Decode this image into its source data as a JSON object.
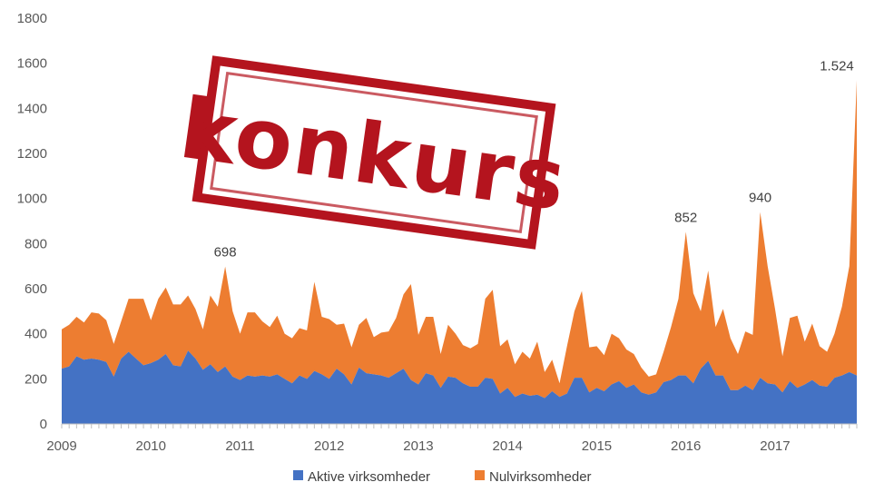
{
  "colors": {
    "active": "#4472c4",
    "zero": "#ed7d31",
    "stamp": "#b4141e",
    "axis": "#bfbfbf"
  },
  "stamp_text": "konkurs",
  "chart_data": {
    "type": "area",
    "stacked": true,
    "y_ticks": [
      "0",
      "200",
      "400",
      "600",
      "800",
      "1000",
      "1200",
      "1400",
      "1600",
      "1800"
    ],
    "ylim": [
      0,
      1800
    ],
    "x_tick_labels": [
      "2009",
      "2010",
      "2011",
      "2012",
      "2013",
      "2014",
      "2015",
      "2016",
      "2017"
    ],
    "x_start_year": 2009,
    "legend_position": "bottom",
    "grid": false,
    "series": [
      {
        "name": "Aktive virksomheder",
        "values": [
          245,
          255,
          300,
          285,
          290,
          285,
          275,
          210,
          290,
          320,
          290,
          260,
          270,
          285,
          310,
          260,
          255,
          325,
          290,
          240,
          265,
          230,
          255,
          210,
          195,
          215,
          210,
          215,
          210,
          220,
          200,
          180,
          215,
          200,
          235,
          220,
          200,
          245,
          220,
          175,
          250,
          225,
          220,
          215,
          205,
          225,
          245,
          195,
          175,
          225,
          215,
          160,
          210,
          205,
          180,
          165,
          165,
          205,
          200,
          135,
          160,
          120,
          135,
          125,
          130,
          115,
          145,
          120,
          135,
          205,
          205,
          140,
          160,
          145,
          175,
          190,
          160,
          175,
          140,
          130,
          140,
          185,
          195,
          215,
          215,
          180,
          245,
          280,
          215,
          215,
          150,
          150,
          170,
          150,
          205,
          180,
          175,
          140,
          190,
          160,
          175,
          195,
          170,
          165,
          205,
          215,
          230,
          215
        ]
      },
      {
        "name": "Nulvirksomheder",
        "values": [
          420,
          440,
          475,
          450,
          495,
          490,
          460,
          355,
          455,
          555,
          555,
          555,
          460,
          555,
          605,
          530,
          530,
          570,
          510,
          420,
          570,
          520,
          698,
          500,
          400,
          495,
          495,
          455,
          430,
          480,
          400,
          380,
          425,
          415,
          630,
          475,
          465,
          440,
          445,
          340,
          440,
          470,
          385,
          405,
          410,
          470,
          575,
          620,
          395,
          475,
          475,
          310,
          440,
          400,
          350,
          335,
          355,
          555,
          595,
          345,
          375,
          265,
          320,
          290,
          365,
          230,
          285,
          180,
          345,
          500,
          590,
          340,
          345,
          305,
          400,
          380,
          330,
          310,
          250,
          210,
          220,
          320,
          430,
          555,
          852,
          580,
          500,
          680,
          430,
          510,
          380,
          310,
          410,
          395,
          940,
          700,
          510,
          300,
          470,
          480,
          365,
          445,
          345,
          320,
          400,
          520,
          700,
          1524
        ]
      }
    ],
    "peak_labels": [
      {
        "index": 22,
        "text": "698"
      },
      {
        "index": 84,
        "text": "852"
      },
      {
        "index": 94,
        "text": "940"
      },
      {
        "index": 107,
        "text": "1.524"
      }
    ]
  }
}
